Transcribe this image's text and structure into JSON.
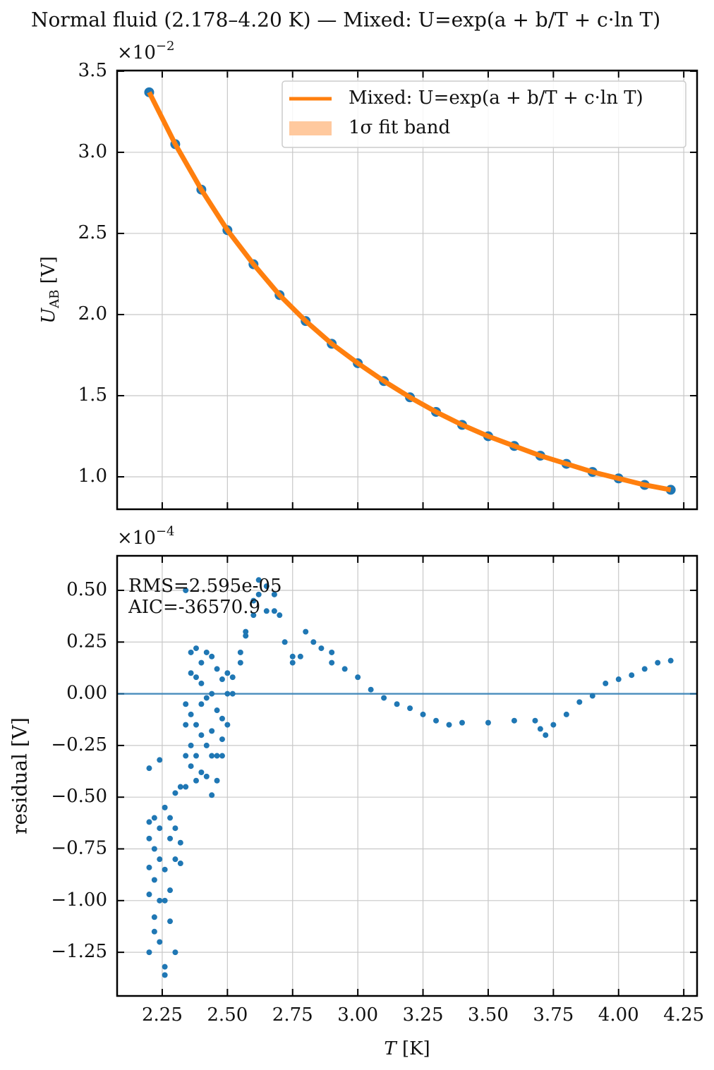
{
  "chart_data": [
    {
      "type": "line",
      "title": "Normal fluid (2.178–4.20 K) — Mixed: U=exp(a + b/T + c·ln T)",
      "ylabel": {
        "symbol": "U",
        "subscript": "AB",
        "unit": "[V]"
      },
      "offset_text": {
        "base": "×10",
        "exponent": "−2"
      },
      "x": [
        2.2,
        2.3,
        2.4,
        2.5,
        2.6,
        2.7,
        2.8,
        2.9,
        3.0,
        3.1,
        3.2,
        3.3,
        3.4,
        3.5,
        3.6,
        3.7,
        3.8,
        3.9,
        4.0,
        4.1,
        4.2
      ],
      "scatter": {
        "color": "#1f77b4",
        "values": [
          3.37,
          3.05,
          2.77,
          2.52,
          2.31,
          2.12,
          1.96,
          1.82,
          1.7,
          1.59,
          1.49,
          1.4,
          1.32,
          1.25,
          1.19,
          1.13,
          1.08,
          1.03,
          0.99,
          0.95,
          0.92
        ]
      },
      "series": [
        {
          "name": "Mixed: U=exp(a + b/T + c·ln T)",
          "color": "#ff7f0e",
          "values": [
            3.37,
            3.05,
            2.77,
            2.52,
            2.31,
            2.12,
            1.96,
            1.82,
            1.7,
            1.59,
            1.49,
            1.4,
            1.32,
            1.25,
            1.19,
            1.13,
            1.08,
            1.03,
            0.99,
            0.95,
            0.92
          ]
        },
        {
          "name": "1σ fit band",
          "color": "#ffc99e"
        }
      ],
      "legend": "upper right",
      "xlim": [
        2.077,
        4.301
      ],
      "xticks": [
        2.25,
        2.5,
        2.75,
        3.0,
        3.25,
        3.5,
        3.75,
        4.0,
        4.25
      ],
      "ylim": [
        0.8,
        3.504
      ],
      "yticks": [
        {
          "value": 1,
          "label": "1.0"
        },
        1.5,
        {
          "value": 2,
          "label": "2.0"
        },
        2.5,
        {
          "value": 3,
          "label": "3.0"
        },
        3.5
      ],
      "grid": true
    },
    {
      "type": "scatter",
      "ylabel": "residual [V]",
      "xlabel": {
        "symbol": "T",
        "unit": "[K]"
      },
      "offset_text": {
        "base": "×10",
        "exponent": "−4"
      },
      "annotations": [
        "RMS=2.595e-05",
        "AIC=-36570.9"
      ],
      "color": "#1f77b4",
      "hline": 0,
      "x": [
        2.2,
        2.2,
        2.2,
        2.2,
        2.2,
        2.2,
        2.22,
        2.22,
        2.22,
        2.22,
        2.22,
        2.24,
        2.24,
        2.24,
        2.24,
        2.24,
        2.26,
        2.26,
        2.26,
        2.26,
        2.26,
        2.28,
        2.28,
        2.28,
        2.28,
        2.3,
        2.3,
        2.3,
        2.3,
        2.32,
        2.32,
        2.32,
        2.34,
        2.34,
        2.34,
        2.34,
        2.34,
        2.36,
        2.36,
        2.36,
        2.36,
        2.36,
        2.38,
        2.38,
        2.38,
        2.38,
        2.38,
        2.4,
        2.4,
        2.4,
        2.4,
        2.4,
        2.42,
        2.42,
        2.42,
        2.42,
        2.44,
        2.44,
        2.44,
        2.44,
        2.44,
        2.46,
        2.46,
        2.46,
        2.46,
        2.48,
        2.48,
        2.48,
        2.48,
        2.5,
        2.5,
        2.5,
        2.52,
        2.52,
        2.55,
        2.55,
        2.57,
        2.57,
        2.6,
        2.6,
        2.62,
        2.62,
        2.65,
        2.65,
        2.68,
        2.68,
        2.7,
        2.72,
        2.75,
        2.75,
        2.78,
        2.8,
        2.83,
        2.86,
        2.9,
        2.9,
        2.95,
        3.0,
        3.05,
        3.1,
        3.15,
        3.2,
        3.25,
        3.3,
        3.35,
        3.4,
        3.5,
        3.6,
        3.68,
        3.7,
        3.72,
        3.75,
        3.8,
        3.85,
        3.9,
        3.95,
        4.0,
        4.05,
        4.1,
        4.15,
        4.2
      ],
      "values": [
        -0.36,
        -0.62,
        -0.7,
        -0.84,
        -0.97,
        -1.25,
        -0.6,
        -0.75,
        -0.9,
        -1.08,
        -1.15,
        -0.32,
        -0.65,
        -0.8,
        -1.0,
        -1.2,
        -0.55,
        -0.85,
        -1.0,
        -1.32,
        -1.36,
        -0.6,
        -0.7,
        -0.95,
        -1.1,
        -0.48,
        -0.65,
        -0.8,
        -1.25,
        -0.45,
        -0.72,
        -0.82,
        0.5,
        -0.05,
        -0.15,
        -0.3,
        -0.45,
        0.2,
        0.1,
        -0.1,
        -0.25,
        -0.35,
        0.22,
        0.08,
        -0.15,
        -0.3,
        -0.42,
        0.15,
        0.05,
        -0.05,
        -0.2,
        -0.38,
        0.2,
        -0.02,
        -0.25,
        -0.4,
        0.18,
        0.0,
        -0.18,
        -0.3,
        -0.49,
        0.12,
        -0.08,
        -0.3,
        -0.42,
        0.07,
        -0.12,
        -0.22,
        -0.3,
        0.1,
        0.0,
        -0.15,
        0.08,
        0.0,
        0.2,
        0.15,
        0.28,
        0.3,
        0.45,
        0.38,
        0.55,
        0.48,
        0.52,
        0.4,
        0.48,
        0.4,
        0.38,
        0.25,
        0.15,
        0.18,
        0.18,
        0.3,
        0.25,
        0.22,
        0.2,
        0.15,
        0.12,
        0.08,
        0.02,
        -0.02,
        -0.05,
        -0.07,
        -0.1,
        -0.13,
        -0.15,
        -0.14,
        -0.14,
        -0.13,
        -0.13,
        -0.17,
        -0.2,
        -0.15,
        -0.1,
        -0.04,
        -0.01,
        0.05,
        0.07,
        0.09,
        0.12,
        0.15,
        0.16
      ],
      "xlim": [
        2.077,
        4.301
      ],
      "xticks": [
        2.25,
        {
          "value": 2.5,
          "label": "2.50"
        },
        2.75,
        {
          "value": 3,
          "label": "3.00"
        },
        3.25,
        {
          "value": 3.5,
          "label": "3.50"
        },
        3.75,
        {
          "value": 4,
          "label": "4.00"
        },
        4.25
      ],
      "ylim": [
        -1.461,
        0.667
      ],
      "yticks": [
        {
          "value": -1.25,
          "label": "−1.25"
        },
        {
          "value": -1,
          "label": "−1.00"
        },
        {
          "value": -0.75,
          "label": "−0.75"
        },
        {
          "value": -0.5,
          "label": "−0.50"
        },
        {
          "value": -0.25,
          "label": "−0.25"
        },
        {
          "value": 0,
          "label": "0.00"
        },
        0.25,
        {
          "value": 0.5,
          "label": "0.50"
        }
      ],
      "grid": true
    }
  ]
}
